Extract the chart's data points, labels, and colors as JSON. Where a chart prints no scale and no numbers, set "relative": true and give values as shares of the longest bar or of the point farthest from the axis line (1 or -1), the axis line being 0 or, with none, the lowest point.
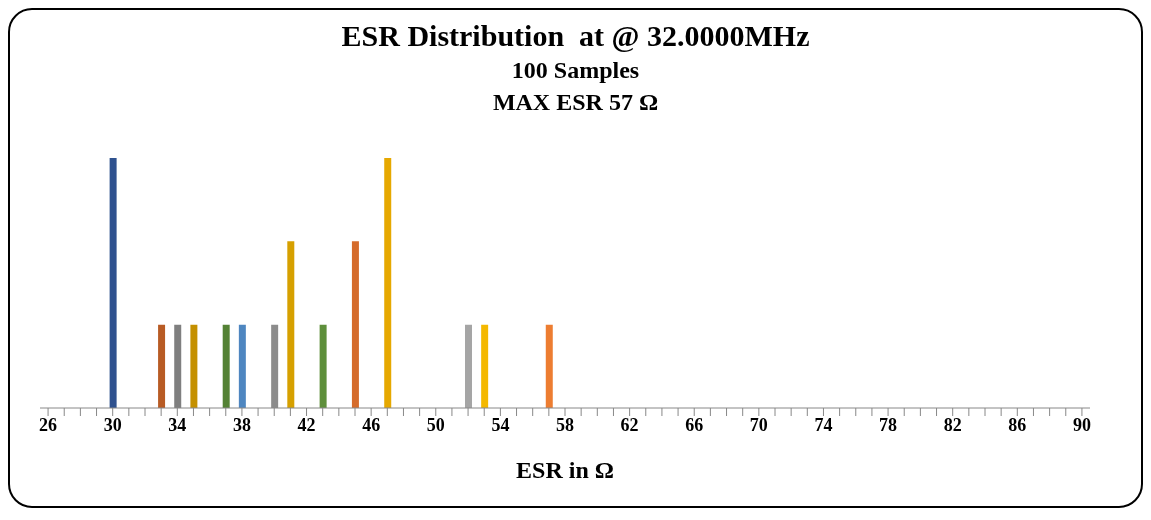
{
  "chart_data": {
    "type": "bar",
    "title": "ESR Distribution  at @ 32.0000MHz",
    "subtitle": "100 Samples",
    "annotations": [
      "MAX ESR 57 Ω"
    ],
    "xlabel": "ESR in Ω",
    "relative": true,
    "grid": false,
    "legend": false,
    "categories": [
      "26",
      null,
      null,
      null,
      "30",
      null,
      null,
      null,
      "34",
      null,
      null,
      null,
      "38",
      null,
      null,
      null,
      "42",
      null,
      null,
      null,
      "46",
      null,
      null,
      null,
      "50",
      null,
      null,
      null,
      "54",
      null,
      null,
      null,
      "58",
      null,
      null,
      null,
      "62",
      null,
      null,
      null,
      "66",
      null,
      null,
      null,
      "70",
      null,
      null,
      null,
      "74",
      null,
      null,
      null,
      "78",
      null,
      null,
      null,
      "82",
      null,
      null,
      null,
      "86",
      null,
      null,
      null,
      "90"
    ],
    "values": [
      null,
      null,
      null,
      null,
      1,
      null,
      null,
      0.333,
      0.333,
      0.333,
      null,
      0.333,
      0.333,
      null,
      0.333,
      0.667,
      null,
      0.333,
      null,
      0.667,
      null,
      1,
      null,
      null,
      null,
      null,
      0.333,
      0.333,
      null,
      null,
      null,
      0.333,
      null,
      null,
      null,
      null,
      null,
      null,
      null,
      null,
      null,
      null,
      null,
      null,
      null,
      null,
      null,
      null,
      null,
      null,
      null,
      null,
      null,
      null,
      null,
      null,
      null,
      null,
      null,
      null,
      null,
      null,
      null,
      null,
      null
    ],
    "colors": [
      null,
      null,
      null,
      null,
      "#2f528f",
      null,
      null,
      "#b85b24",
      "#7f7f7f",
      "#c49000",
      null,
      "#548235",
      "#4e86c0",
      null,
      "#8c8c8c",
      "#d6a000",
      null,
      "#5e8f3b",
      null,
      "#d56b2b",
      null,
      "#e6a800",
      null,
      null,
      null,
      null,
      "#a5a5a5",
      "#f4b800",
      null,
      null,
      null,
      "#ed7d31",
      null,
      null,
      null,
      null,
      null,
      null,
      null,
      null,
      null,
      null,
      null,
      null,
      null,
      null,
      null,
      null,
      null,
      null,
      null,
      null,
      null,
      null,
      null,
      null,
      null,
      null,
      null,
      null,
      null,
      null,
      null,
      null,
      null
    ]
  }
}
